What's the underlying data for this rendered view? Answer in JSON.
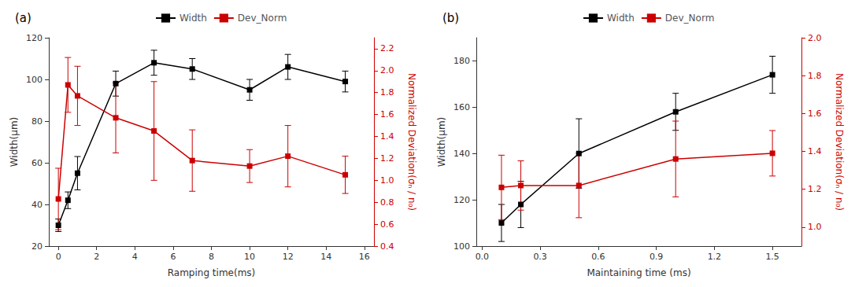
{
  "chart_data": [
    {
      "type": "line",
      "title": "(a)",
      "x_label": "Ramping time(ms)",
      "y_label": "Width(μm)",
      "y2_label": "Normalized Deviation(σₙ / n₀)",
      "x": [
        0,
        0.5,
        1,
        3,
        5,
        7,
        10,
        12,
        15
      ],
      "series": [
        {
          "name": "Width",
          "color": "#000000",
          "marker": "square",
          "line_style": "solid",
          "values": [
            30,
            42,
            55,
            98,
            108,
            105,
            95,
            106,
            99
          ],
          "yerr": [
            3,
            4,
            8,
            6,
            6,
            5,
            5,
            6,
            5
          ]
        },
        {
          "name": "Dev_Norm",
          "color": "#cc0000",
          "marker": "square",
          "line_style": "solid",
          "axis": "y2",
          "values": [
            0.83,
            1.87,
            1.77,
            1.57,
            1.45,
            1.18,
            1.13,
            1.22,
            1.05
          ],
          "yerr": [
            0.28,
            0.25,
            0.27,
            0.32,
            0.45,
            0.28,
            0.15,
            0.28,
            0.17
          ]
        }
      ],
      "xlim": [
        -0.5,
        16.5
      ],
      "xticks": [
        0,
        2,
        4,
        6,
        8,
        10,
        12,
        14,
        16
      ],
      "ylim": [
        20,
        120
      ],
      "yticks": [
        20,
        40,
        60,
        80,
        100,
        120
      ],
      "y2lim": [
        0.4,
        2.3
      ],
      "y2ticks": [
        0.4,
        0.6,
        0.8,
        {
          "value": 1.0,
          "label": "1.0"
        },
        1.2,
        1.4,
        1.6,
        1.8,
        {
          "value": 2.0,
          "label": "2.0"
        },
        2.2
      ],
      "grid": false,
      "legend": "top"
    },
    {
      "type": "line",
      "title": "(b)",
      "x_label": "Maintaining time (ms)",
      "y_label": "Width(μm)",
      "y2_label": "Normalized Deviation(σₙ / n₀)",
      "x": [
        0.1,
        0.2,
        0.5,
        1.0,
        1.5
      ],
      "series": [
        {
          "name": "Width",
          "color": "#000000",
          "marker": "square",
          "line_style": "solid",
          "values": [
            110,
            118,
            140,
            158,
            174
          ],
          "yerr": [
            8,
            10,
            15,
            8,
            8
          ]
        },
        {
          "name": "Dev_Norm",
          "color": "#cc0000",
          "marker": "square",
          "line_style": "solid",
          "axis": "y2",
          "values": [
            1.21,
            1.22,
            1.22,
            1.36,
            1.39
          ],
          "yerr": [
            0.17,
            0.13,
            0.17,
            0.2,
            0.12
          ]
        }
      ],
      "xlim": [
        -0.03,
        1.65
      ],
      "xticks": [
        {
          "value": 0.0,
          "label": "0.0"
        },
        0.3,
        0.6,
        0.9,
        1.2,
        1.5
      ],
      "ylim": [
        100,
        190
      ],
      "yticks": [
        100,
        120,
        140,
        160,
        180
      ],
      "y2lim": [
        0.9,
        2.0
      ],
      "y2ticks": [
        {
          "value": 1.0,
          "label": "1.0"
        },
        1.2,
        1.4,
        1.6,
        1.8,
        {
          "value": 2.0,
          "label": "2.0"
        }
      ],
      "grid": false,
      "legend": "top"
    }
  ]
}
